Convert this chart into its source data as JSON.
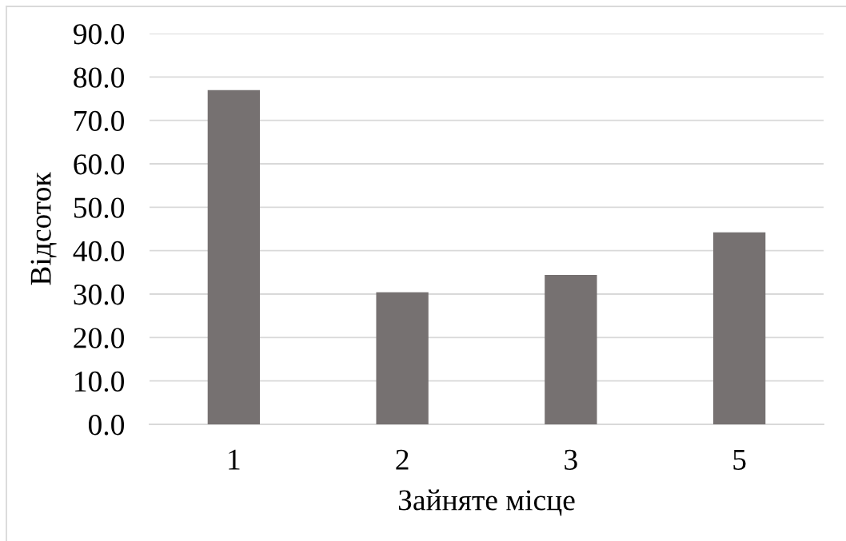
{
  "chart_data": {
    "type": "bar",
    "xlabel": "Зайняте місце",
    "ylabel": "Відсоток",
    "categories": [
      "1",
      "2",
      "3",
      "5"
    ],
    "values": [
      77.0,
      30.4,
      34.4,
      44.2
    ],
    "color": "#767171",
    "ylim": [
      0,
      90
    ],
    "yticks": [
      {
        "value": 0,
        "label": "0.0"
      },
      {
        "value": 10,
        "label": "10.0"
      },
      {
        "value": 20,
        "label": "20.0"
      },
      {
        "value": 30,
        "label": "30.0"
      },
      {
        "value": 40,
        "label": "40.0"
      },
      {
        "value": 50,
        "label": "50.0"
      },
      {
        "value": 60,
        "label": "60.0"
      },
      {
        "value": 70,
        "label": "70.0"
      },
      {
        "value": 80,
        "label": "80.0"
      },
      {
        "value": 90,
        "label": "90.0"
      }
    ],
    "grid": "y",
    "legend": false
  }
}
